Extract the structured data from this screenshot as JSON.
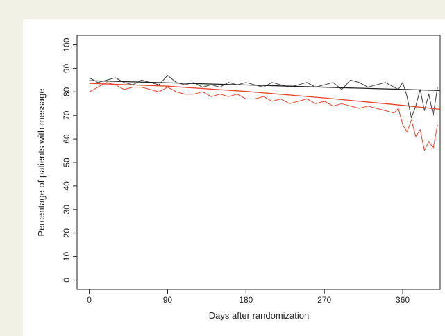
{
  "chart_data": {
    "type": "line",
    "title": "",
    "xlabel": "Days after randomization",
    "ylabel": "Percentage of patients with message",
    "xlim": [
      -14,
      403
    ],
    "ylim": [
      -4,
      104
    ],
    "x_ticks": [
      0,
      90,
      180,
      270,
      360
    ],
    "y_ticks": [
      0,
      10,
      20,
      30,
      40,
      50,
      60,
      70,
      80,
      90,
      100
    ],
    "grid": false,
    "legend": "none",
    "series": [
      {
        "color": "#3a3a3a",
        "style": "raw",
        "x": [
          0,
          10,
          20,
          30,
          40,
          50,
          60,
          70,
          80,
          90,
          100,
          110,
          120,
          130,
          140,
          150,
          160,
          170,
          180,
          190,
          200,
          210,
          220,
          230,
          240,
          250,
          260,
          270,
          280,
          290,
          300,
          310,
          320,
          330,
          340,
          350,
          355,
          360,
          365,
          370,
          375,
          380,
          385,
          390,
          395,
          400
        ],
        "y": [
          86,
          84,
          85,
          86,
          84,
          83,
          85,
          84,
          83,
          87,
          84,
          83,
          84,
          82,
          83,
          82,
          84,
          83,
          84,
          83,
          82,
          84,
          83,
          82,
          83,
          84,
          82,
          83,
          84,
          81,
          85,
          84,
          82,
          83,
          84,
          82,
          81,
          84,
          78,
          69,
          74,
          81,
          72,
          79,
          70,
          82
        ]
      },
      {
        "color": "#e8412c",
        "style": "raw",
        "x": [
          0,
          10,
          20,
          30,
          40,
          50,
          60,
          70,
          80,
          90,
          100,
          110,
          120,
          130,
          140,
          150,
          160,
          170,
          180,
          190,
          200,
          210,
          220,
          230,
          240,
          250,
          260,
          270,
          280,
          290,
          300,
          310,
          320,
          330,
          340,
          350,
          355,
          360,
          365,
          370,
          375,
          380,
          385,
          390,
          395,
          400
        ],
        "y": [
          80,
          82,
          84,
          83,
          81,
          82,
          82,
          81,
          80,
          82,
          80,
          79,
          79,
          80,
          78,
          79,
          78,
          79,
          77,
          77,
          78,
          76,
          77,
          75,
          76,
          77,
          75,
          76,
          74,
          75,
          74,
          73,
          74,
          73,
          72,
          71,
          73,
          66,
          63,
          68,
          61,
          64,
          55,
          59,
          56,
          66
        ]
      },
      {
        "color": "#222222",
        "style": "trend",
        "x": [
          0,
          403
        ],
        "y": [
          84.8,
          80.6
        ]
      },
      {
        "color": "#e8412c",
        "style": "trend",
        "x": [
          0,
          90,
          180,
          270,
          360,
          403
        ],
        "y": [
          83.6,
          82.4,
          80.2,
          77.4,
          74.3,
          72.6
        ]
      }
    ]
  }
}
